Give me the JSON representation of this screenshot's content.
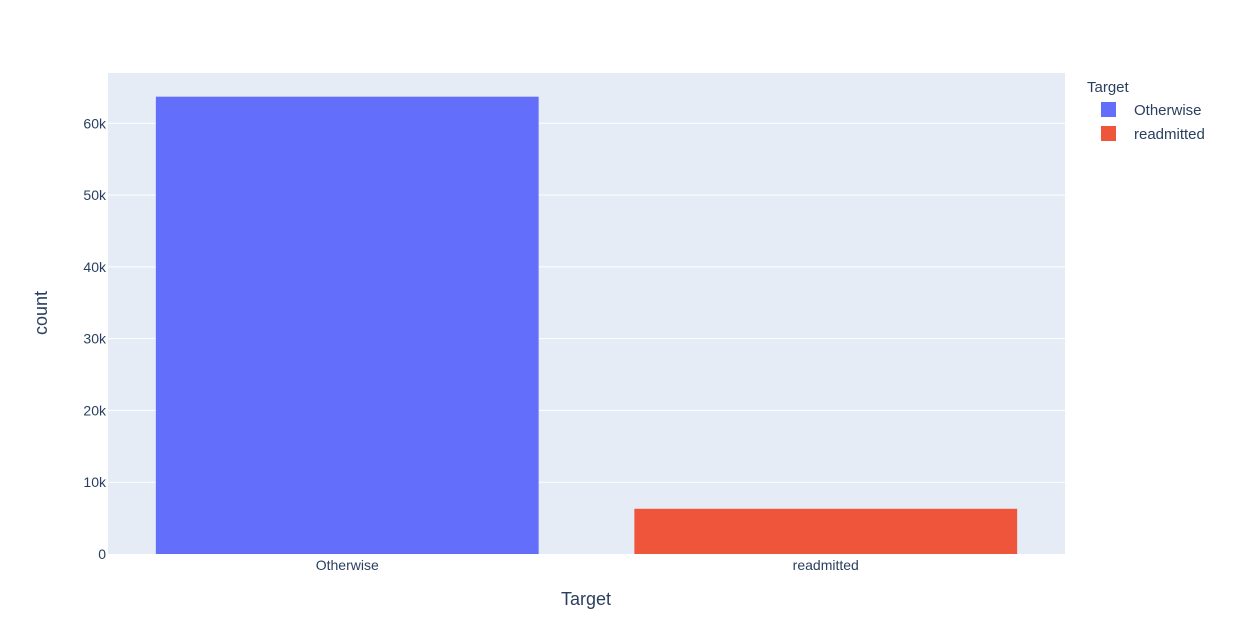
{
  "chart_data": {
    "type": "bar",
    "categories": [
      "Otherwise",
      "readmitted"
    ],
    "values": [
      63700,
      6300
    ],
    "colors": [
      "#636efa",
      "#ef553b"
    ],
    "xlabel": "Target",
    "ylabel": "count",
    "ylim": [
      0,
      67000
    ],
    "yticks": [
      0,
      10000,
      20000,
      30000,
      40000,
      50000,
      60000
    ],
    "ytick_labels": [
      "0",
      "10k",
      "20k",
      "30k",
      "40k",
      "50k",
      "60k"
    ],
    "grid": true,
    "plot_background": "#e5ecf6",
    "legend": {
      "title": "Target",
      "placement": "top-right",
      "items": [
        {
          "label": "Otherwise",
          "color": "#636efa"
        },
        {
          "label": "readmitted",
          "color": "#ef553b"
        }
      ]
    }
  }
}
